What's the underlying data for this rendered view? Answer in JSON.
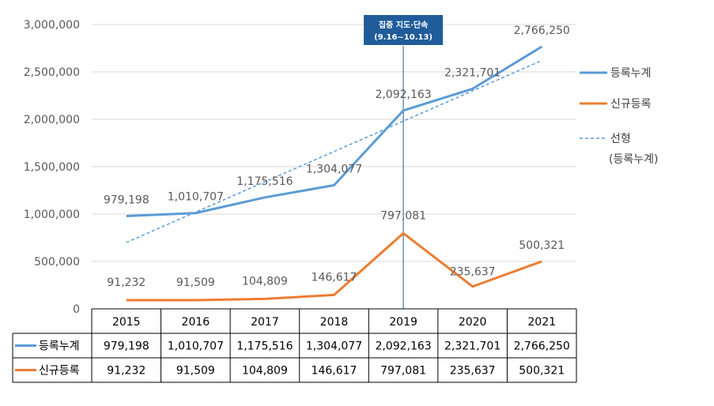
{
  "chart_data": {
    "type": "line",
    "categories": [
      "2015",
      "2016",
      "2017",
      "2018",
      "2019",
      "2020",
      "2021"
    ],
    "series": [
      {
        "name": "등록누계",
        "values": [
          979198,
          1010707,
          1175516,
          1304077,
          2092163,
          2321701,
          2766250
        ],
        "labels": [
          "979,198",
          "1,010,707",
          "1,175,516",
          "1,304,077",
          "2,092,163",
          "2,321,701",
          "2,766,250"
        ],
        "color": "#5B9BD5"
      },
      {
        "name": "신규등록",
        "values": [
          91232,
          91509,
          104809,
          146617,
          797081,
          235637,
          500321
        ],
        "labels": [
          "91,232",
          "91,509",
          "104,809",
          "146,617",
          "797,081",
          "235,637",
          "500,321"
        ],
        "color": "#ED7D31"
      }
    ],
    "trendline": {
      "name_line1": "선형",
      "name_line2": "(등록누계)",
      "start": 700000,
      "end": 2620000,
      "color": "#5B9BD5"
    },
    "ylim": [
      0,
      3000000
    ],
    "yticks": [
      0,
      500000,
      1000000,
      1500000,
      2000000,
      2500000,
      3000000
    ],
    "ytick_labels": [
      "0",
      "500,000",
      "1,000,000",
      "1,500,000",
      "2,000,000",
      "2,500,000",
      "3,000,000"
    ],
    "annotation": {
      "category": "2019",
      "line1": "집중 지도·단속",
      "line2": "(9.16~10.13)",
      "color": "#1F5C99"
    },
    "legend_position": "right",
    "grid": true
  }
}
